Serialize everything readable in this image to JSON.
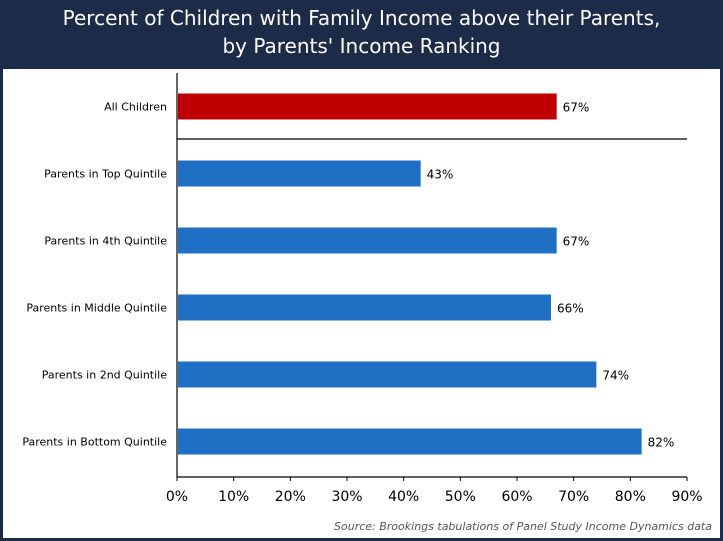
{
  "title_lines": [
    "Percent of Children with Family Income above their Parents,",
    "by Parents' Income Ranking"
  ],
  "source": "Source: Brookings tabulations of Panel Study Income Dynamics data",
  "colors": {
    "frame": "#1b2b48",
    "highlight_bar": "#c00000",
    "bar": "#1f6fc5"
  },
  "chart_data": {
    "type": "bar",
    "orientation": "horizontal",
    "categories": [
      "All Children",
      "Parents in Top Quintile",
      "Parents in 4th Quintile",
      "Parents in Middle Quintile",
      "Parents in 2nd Quintile",
      "Parents in Bottom Quintile"
    ],
    "values": [
      67,
      43,
      67,
      66,
      74,
      82
    ],
    "data_labels": [
      "67%",
      "43%",
      "67%",
      "66%",
      "74%",
      "82%"
    ],
    "highlight_index": 0,
    "xlim": [
      0,
      90
    ],
    "xticks": [
      0,
      10,
      20,
      30,
      40,
      50,
      60,
      70,
      80,
      90
    ],
    "xtick_labels": [
      "0%",
      "10%",
      "20%",
      "30%",
      "40%",
      "50%",
      "60%",
      "70%",
      "80%",
      "90%"
    ],
    "grid": false
  }
}
